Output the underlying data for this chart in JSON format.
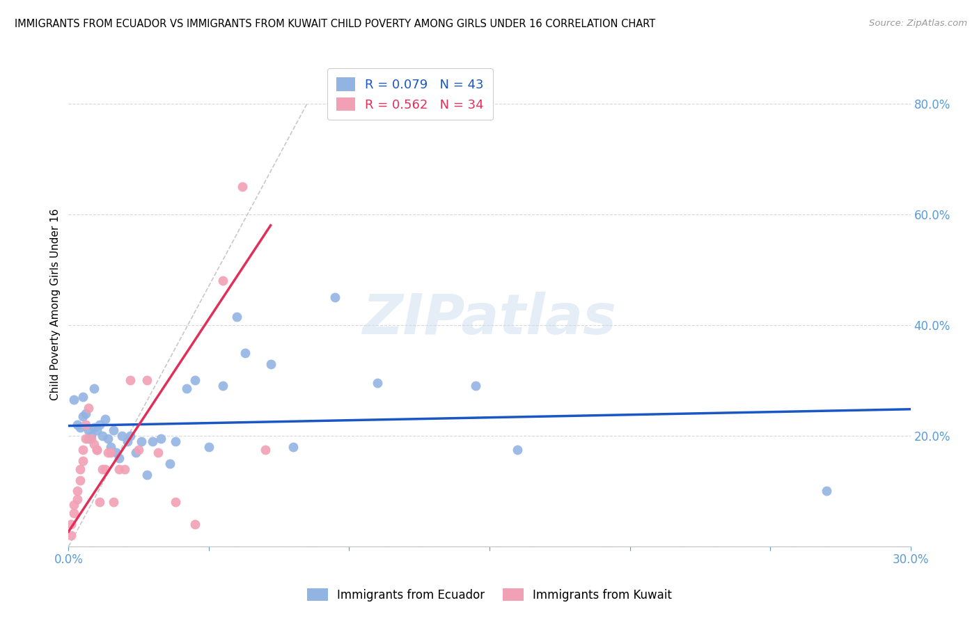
{
  "title": "IMMIGRANTS FROM ECUADOR VS IMMIGRANTS FROM KUWAIT CHILD POVERTY AMONG GIRLS UNDER 16 CORRELATION CHART",
  "source": "Source: ZipAtlas.com",
  "ylabel": "Child Poverty Among Girls Under 16",
  "legend_labels": [
    "Immigrants from Ecuador",
    "Immigrants from Kuwait"
  ],
  "ecuador_R": "R = 0.079",
  "ecuador_N": "N = 43",
  "kuwait_R": "R = 0.562",
  "kuwait_N": "N = 34",
  "ecuador_color": "#92b4e3",
  "kuwait_color": "#f2a0b5",
  "ecuador_trend_color": "#1a56c4",
  "kuwait_trend_color": "#e0305a",
  "ref_line_color": "#c8c8c8",
  "grid_color": "#d8d8d8",
  "tick_color": "#5b9bd5",
  "xlim": [
    0.0,
    0.3
  ],
  "ylim": [
    0.0,
    0.875
  ],
  "right_yticks": [
    0.0,
    0.2,
    0.4,
    0.6,
    0.8
  ],
  "right_yticklabels": [
    "",
    "20.0%",
    "40.0%",
    "60.0%",
    "80.0%"
  ],
  "xticks": [
    0.0,
    0.05,
    0.1,
    0.15,
    0.2,
    0.25,
    0.3
  ],
  "xticklabels": [
    "0.0%",
    "",
    "",
    "",
    "",
    "",
    "30.0%"
  ],
  "watermark": "ZIPatlas",
  "ecuador_x": [
    0.002,
    0.003,
    0.004,
    0.005,
    0.005,
    0.006,
    0.007,
    0.007,
    0.008,
    0.009,
    0.009,
    0.01,
    0.011,
    0.012,
    0.013,
    0.014,
    0.015,
    0.016,
    0.017,
    0.018,
    0.019,
    0.021,
    0.022,
    0.024,
    0.026,
    0.028,
    0.03,
    0.033,
    0.036,
    0.038,
    0.042,
    0.045,
    0.05,
    0.055,
    0.06,
    0.063,
    0.072,
    0.08,
    0.095,
    0.11,
    0.145,
    0.27,
    0.16
  ],
  "ecuador_y": [
    0.265,
    0.22,
    0.215,
    0.235,
    0.27,
    0.24,
    0.195,
    0.21,
    0.2,
    0.285,
    0.215,
    0.21,
    0.22,
    0.2,
    0.23,
    0.195,
    0.18,
    0.21,
    0.17,
    0.16,
    0.2,
    0.19,
    0.2,
    0.17,
    0.19,
    0.13,
    0.19,
    0.195,
    0.15,
    0.19,
    0.285,
    0.3,
    0.18,
    0.29,
    0.415,
    0.35,
    0.33,
    0.18,
    0.45,
    0.295,
    0.29,
    0.1,
    0.175
  ],
  "kuwait_x": [
    0.001,
    0.001,
    0.002,
    0.002,
    0.003,
    0.003,
    0.004,
    0.004,
    0.005,
    0.005,
    0.006,
    0.006,
    0.007,
    0.008,
    0.009,
    0.01,
    0.01,
    0.011,
    0.012,
    0.013,
    0.014,
    0.015,
    0.016,
    0.018,
    0.02,
    0.022,
    0.025,
    0.028,
    0.032,
    0.038,
    0.045,
    0.055,
    0.062,
    0.07
  ],
  "kuwait_y": [
    0.02,
    0.04,
    0.06,
    0.075,
    0.085,
    0.1,
    0.12,
    0.14,
    0.155,
    0.175,
    0.195,
    0.22,
    0.25,
    0.195,
    0.185,
    0.175,
    0.175,
    0.08,
    0.14,
    0.14,
    0.17,
    0.17,
    0.08,
    0.14,
    0.14,
    0.3,
    0.175,
    0.3,
    0.17,
    0.08,
    0.04,
    0.48,
    0.65,
    0.175
  ],
  "ecuador_trend_x": [
    0.0,
    0.3
  ],
  "ecuador_trend_y": [
    0.218,
    0.248
  ],
  "kuwait_trend_x": [
    0.0,
    0.072
  ],
  "kuwait_trend_y": [
    0.027,
    0.58
  ]
}
